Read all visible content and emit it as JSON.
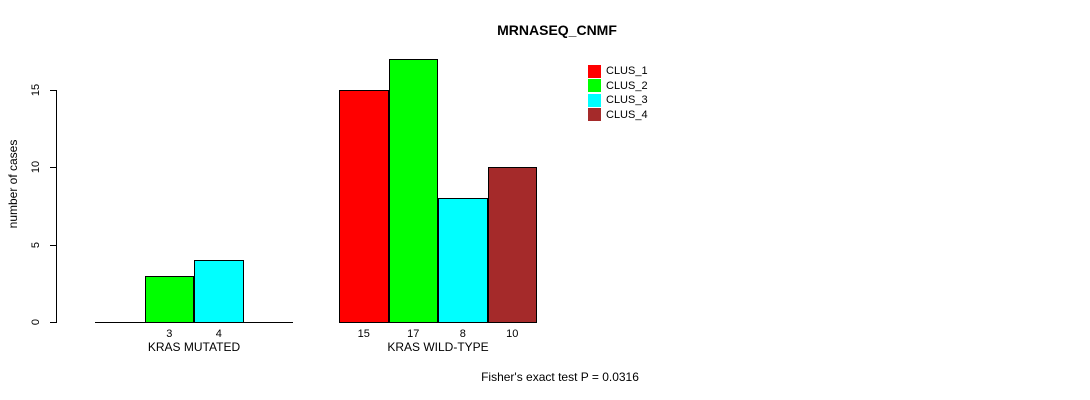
{
  "chart_data": {
    "type": "bar",
    "title": "MRNASEQ_CNMF",
    "ylabel": "number of cases",
    "yticks": [
      0,
      5,
      10,
      15
    ],
    "ylim": [
      0,
      17
    ],
    "grid": false,
    "legend_position": "top-right",
    "categories": [
      "KRAS MUTATED",
      "KRAS WILD-TYPE"
    ],
    "series": [
      {
        "name": "CLUS_1",
        "color": "#ff0000",
        "values": [
          0,
          15
        ]
      },
      {
        "name": "CLUS_2",
        "color": "#00ff00",
        "values": [
          3,
          17
        ]
      },
      {
        "name": "CLUS_3",
        "color": "#00ffff",
        "values": [
          4,
          8
        ]
      },
      {
        "name": "CLUS_4",
        "color": "#a52a2a",
        "values": [
          0,
          10
        ]
      }
    ],
    "groups": [
      {
        "label": "KRAS MUTATED",
        "values": [
          0,
          3,
          4,
          0
        ],
        "bar_labels": [
          "",
          "3",
          "4",
          ""
        ]
      },
      {
        "label": "KRAS WILD-TYPE",
        "values": [
          15,
          17,
          8,
          10
        ],
        "bar_labels": [
          "15",
          "17",
          "8",
          "10"
        ]
      }
    ],
    "footer": "Fisher's exact test P = 0.0316",
    "axis_color": "#000000",
    "background_color": "#ffffff"
  }
}
